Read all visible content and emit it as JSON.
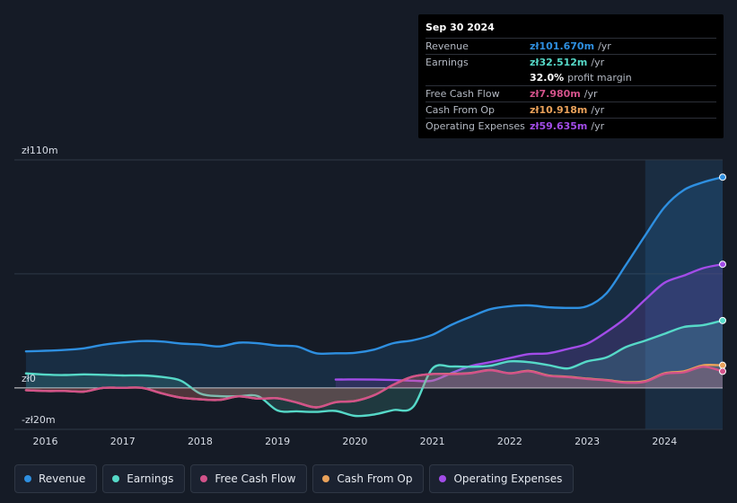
{
  "tooltip": {
    "date": "Sep 30 2024",
    "rows": [
      {
        "label": "Revenue",
        "value": "zł101.670m",
        "unit": "/yr",
        "color": "#2e8fe0"
      },
      {
        "label": "Earnings",
        "value": "zł32.512m",
        "unit": "/yr",
        "color": "#56d9c8"
      },
      {
        "label": "",
        "value": "32.0%",
        "unit": "profit margin",
        "color": "#ffffff"
      },
      {
        "label": "Free Cash Flow",
        "value": "zł7.980m",
        "unit": "/yr",
        "color": "#d2528a"
      },
      {
        "label": "Cash From Op",
        "value": "zł10.918m",
        "unit": "/yr",
        "color": "#e9a15a"
      },
      {
        "label": "Operating Expenses",
        "value": "zł59.635m",
        "unit": "/yr",
        "color": "#a24ce8"
      }
    ]
  },
  "legend": [
    {
      "label": "Revenue",
      "color": "#2e8fe0"
    },
    {
      "label": "Earnings",
      "color": "#56d9c8"
    },
    {
      "label": "Free Cash Flow",
      "color": "#d2528a"
    },
    {
      "label": "Cash From Op",
      "color": "#e9a15a"
    },
    {
      "label": "Operating Expenses",
      "color": "#a24ce8"
    }
  ],
  "chart_data": {
    "type": "area",
    "title": "",
    "xlabel": "",
    "ylabel": "",
    "y_unit": "zł m",
    "ylim": [
      -20,
      110
    ],
    "y_tick_labels": [
      {
        "value": 110,
        "label": "zł110m"
      },
      {
        "value": 0,
        "label": "zł0"
      },
      {
        "value": -20,
        "label": "-zł20m"
      }
    ],
    "xlim": [
      2015.6,
      2024.75
    ],
    "x_tick_labels": [
      "2016",
      "2017",
      "2018",
      "2019",
      "2020",
      "2021",
      "2022",
      "2023",
      "2024"
    ],
    "highlight_from": 2023.75,
    "series": [
      {
        "name": "Revenue",
        "color": "#2e8fe0",
        "fill": true,
        "points": [
          [
            2015.75,
            17.6
          ],
          [
            2016,
            17.9
          ],
          [
            2016.25,
            18.3
          ],
          [
            2016.5,
            19.1
          ],
          [
            2016.75,
            20.8
          ],
          [
            2017,
            21.9
          ],
          [
            2017.25,
            22.6
          ],
          [
            2017.5,
            22.4
          ],
          [
            2017.75,
            21.4
          ],
          [
            2018,
            20.9
          ],
          [
            2018.25,
            20
          ],
          [
            2018.5,
            21.8
          ],
          [
            2018.75,
            21.5
          ],
          [
            2019,
            20.4
          ],
          [
            2019.25,
            20
          ],
          [
            2019.5,
            16.7
          ],
          [
            2019.75,
            16.7
          ],
          [
            2020,
            16.9
          ],
          [
            2020.25,
            18.5
          ],
          [
            2020.5,
            21.6
          ],
          [
            2020.75,
            23
          ],
          [
            2021,
            25.6
          ],
          [
            2021.25,
            30.5
          ],
          [
            2021.5,
            34.4
          ],
          [
            2021.75,
            38
          ],
          [
            2022,
            39.4
          ],
          [
            2022.25,
            39.8
          ],
          [
            2022.5,
            38.9
          ],
          [
            2022.75,
            38.6
          ],
          [
            2023,
            39.4
          ],
          [
            2023.25,
            45.7
          ],
          [
            2023.5,
            59.3
          ],
          [
            2023.75,
            73.6
          ],
          [
            2024,
            87.2
          ],
          [
            2024.25,
            95.5
          ],
          [
            2024.5,
            99.2
          ],
          [
            2024.75,
            101.67
          ]
        ]
      },
      {
        "name": "Operating Expenses",
        "color": "#a24ce8",
        "fill": true,
        "points": [
          [
            2019.75,
            4
          ],
          [
            2020,
            4.1
          ],
          [
            2020.25,
            4
          ],
          [
            2020.5,
            3.8
          ],
          [
            2020.75,
            3.5
          ],
          [
            2021,
            3.5
          ],
          [
            2021.25,
            7.2
          ],
          [
            2021.5,
            10.6
          ],
          [
            2021.75,
            12.4
          ],
          [
            2022,
            14.4
          ],
          [
            2022.25,
            16.3
          ],
          [
            2022.5,
            16.7
          ],
          [
            2022.75,
            18.8
          ],
          [
            2023,
            21.3
          ],
          [
            2023.25,
            27
          ],
          [
            2023.5,
            33.8
          ],
          [
            2023.75,
            42.6
          ],
          [
            2024,
            50.7
          ],
          [
            2024.25,
            54.2
          ],
          [
            2024.5,
            57.8
          ],
          [
            2024.75,
            59.635
          ]
        ]
      },
      {
        "name": "Earnings",
        "color": "#56d9c8",
        "fill": true,
        "points": [
          [
            2015.75,
            7
          ],
          [
            2016,
            6.4
          ],
          [
            2016.25,
            6.2
          ],
          [
            2016.5,
            6.5
          ],
          [
            2016.75,
            6.3
          ],
          [
            2017,
            6
          ],
          [
            2017.25,
            6
          ],
          [
            2017.5,
            5.3
          ],
          [
            2017.75,
            3.5
          ],
          [
            2018,
            -2.7
          ],
          [
            2018.25,
            -4
          ],
          [
            2018.5,
            -4
          ],
          [
            2018.75,
            -4
          ],
          [
            2019,
            -10.9
          ],
          [
            2019.25,
            -11.3
          ],
          [
            2019.5,
            -11.6
          ],
          [
            2019.75,
            -11.1
          ],
          [
            2020,
            -13.5
          ],
          [
            2020.25,
            -12.8
          ],
          [
            2020.5,
            -10.7
          ],
          [
            2020.75,
            -9.2
          ],
          [
            2021,
            9.3
          ],
          [
            2021.25,
            10.3
          ],
          [
            2021.5,
            10.2
          ],
          [
            2021.75,
            10.7
          ],
          [
            2022,
            12.8
          ],
          [
            2022.25,
            12.4
          ],
          [
            2022.5,
            11
          ],
          [
            2022.75,
            9.4
          ],
          [
            2023,
            12.8
          ],
          [
            2023.25,
            14.7
          ],
          [
            2023.5,
            19.7
          ],
          [
            2023.75,
            22.8
          ],
          [
            2024,
            26.1
          ],
          [
            2024.25,
            29.4
          ],
          [
            2024.5,
            30.3
          ],
          [
            2024.75,
            32.512
          ]
        ]
      },
      {
        "name": "Cash From Op",
        "color": "#e9a15a",
        "fill": true,
        "points": [
          [
            2015.75,
            -1.1
          ],
          [
            2016,
            -1.5
          ],
          [
            2016.25,
            -1.5
          ],
          [
            2016.5,
            -1.8
          ],
          [
            2016.75,
            0
          ],
          [
            2017,
            0
          ],
          [
            2017.25,
            0
          ],
          [
            2017.5,
            -2.6
          ],
          [
            2017.75,
            -4.7
          ],
          [
            2018,
            -5.5
          ],
          [
            2018.25,
            -5.8
          ],
          [
            2018.5,
            -4.1
          ],
          [
            2018.75,
            -5.2
          ],
          [
            2019,
            -5
          ],
          [
            2019.25,
            -7.1
          ],
          [
            2019.5,
            -9.4
          ],
          [
            2019.75,
            -6.9
          ],
          [
            2020,
            -6.3
          ],
          [
            2020.25,
            -3.5
          ],
          [
            2020.5,
            1.6
          ],
          [
            2020.75,
            5.5
          ],
          [
            2021,
            6.7
          ],
          [
            2021.25,
            6.8
          ],
          [
            2021.5,
            7.2
          ],
          [
            2021.75,
            8.6
          ],
          [
            2022,
            7.1
          ],
          [
            2022.25,
            8.2
          ],
          [
            2022.5,
            6
          ],
          [
            2022.75,
            5.4
          ],
          [
            2023,
            4.5
          ],
          [
            2023.25,
            3.8
          ],
          [
            2023.5,
            2.8
          ],
          [
            2023.75,
            3.3
          ],
          [
            2024,
            7.1
          ],
          [
            2024.25,
            8
          ],
          [
            2024.5,
            10.9
          ],
          [
            2024.75,
            10.918
          ]
        ]
      },
      {
        "name": "Free Cash Flow",
        "color": "#d2528a",
        "fill": true,
        "points": [
          [
            2015.75,
            -1.1
          ],
          [
            2016,
            -1.5
          ],
          [
            2016.25,
            -1.5
          ],
          [
            2016.5,
            -1.8
          ],
          [
            2016.75,
            0
          ],
          [
            2017,
            0
          ],
          [
            2017.25,
            0
          ],
          [
            2017.5,
            -2.6
          ],
          [
            2017.75,
            -4.7
          ],
          [
            2018,
            -5.5
          ],
          [
            2018.25,
            -5.8
          ],
          [
            2018.5,
            -4.1
          ],
          [
            2018.75,
            -5.2
          ],
          [
            2019,
            -5
          ],
          [
            2019.25,
            -7.1
          ],
          [
            2019.5,
            -9.4
          ],
          [
            2019.75,
            -6.9
          ],
          [
            2020,
            -6.3
          ],
          [
            2020.25,
            -3.5
          ],
          [
            2020.5,
            1.6
          ],
          [
            2020.75,
            5.5
          ],
          [
            2021,
            6.7
          ],
          [
            2021.25,
            6.6
          ],
          [
            2021.5,
            7.1
          ],
          [
            2021.75,
            8.5
          ],
          [
            2022,
            7
          ],
          [
            2022.25,
            8
          ],
          [
            2022.5,
            5.8
          ],
          [
            2022.75,
            5.2
          ],
          [
            2023,
            4.3
          ],
          [
            2023.25,
            3.6
          ],
          [
            2023.5,
            2.5
          ],
          [
            2023.75,
            3
          ],
          [
            2024,
            6.8
          ],
          [
            2024.25,
            7.5
          ],
          [
            2024.5,
            10.2
          ],
          [
            2024.75,
            7.98
          ]
        ]
      }
    ]
  }
}
